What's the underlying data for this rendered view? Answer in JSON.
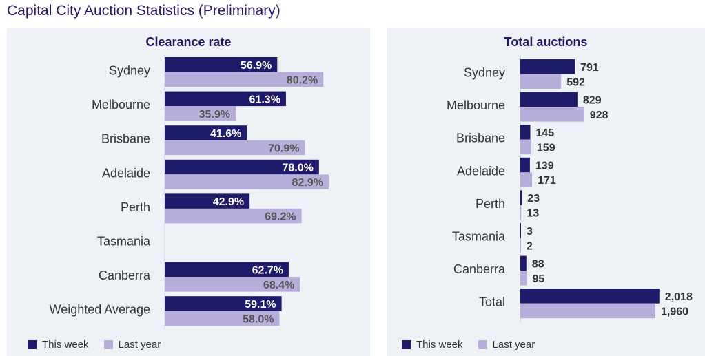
{
  "page": {
    "title": "Capital City Auction Statistics (Preliminary)"
  },
  "colors": {
    "this_week": "#1e1b6b",
    "last_year": "#b8aedc",
    "panel_bg": "#eef2f6"
  },
  "legend": {
    "this_week": "This week",
    "last_year": "Last year"
  },
  "chart_data": [
    {
      "type": "bar",
      "orientation": "horizontal",
      "title": "Clearance rate",
      "categories": [
        "Sydney",
        "Melbourne",
        "Brisbane",
        "Adelaide",
        "Perth",
        "Tasmania",
        "Canberra",
        "Weighted Average"
      ],
      "series": [
        {
          "name": "This week",
          "values": [
            56.9,
            61.3,
            41.6,
            78.0,
            42.9,
            null,
            62.7,
            59.1
          ],
          "labels": [
            "56.9%",
            "61.3%",
            "41.6%",
            "78.0%",
            "42.9%",
            "",
            "62.7%",
            "59.1%"
          ]
        },
        {
          "name": "Last year",
          "values": [
            80.2,
            35.9,
            70.9,
            82.9,
            69.2,
            null,
            68.4,
            58.0
          ],
          "labels": [
            "80.2%",
            "35.9%",
            "70.9%",
            "82.9%",
            "69.2%",
            "",
            "68.4%",
            "58.0%"
          ]
        }
      ],
      "xlim": [
        0,
        100
      ],
      "legend_position": "bottom-left",
      "grid": false
    },
    {
      "type": "bar",
      "orientation": "horizontal",
      "title": "Total auctions",
      "categories": [
        "Sydney",
        "Melbourne",
        "Brisbane",
        "Adelaide",
        "Perth",
        "Tasmania",
        "Canberra",
        "Total"
      ],
      "series": [
        {
          "name": "This week",
          "values": [
            791,
            829,
            145,
            139,
            23,
            3,
            88,
            2018
          ],
          "labels": [
            "791",
            "829",
            "145",
            "139",
            "23",
            "3",
            "88",
            "2,018"
          ]
        },
        {
          "name": "Last year",
          "values": [
            592,
            928,
            159,
            171,
            13,
            2,
            95,
            1960
          ],
          "labels": [
            "592",
            "928",
            "159",
            "171",
            "13",
            "2",
            "95",
            "1,960"
          ]
        }
      ],
      "xlim": [
        0,
        2150
      ],
      "legend_position": "bottom-left",
      "grid": false
    }
  ]
}
